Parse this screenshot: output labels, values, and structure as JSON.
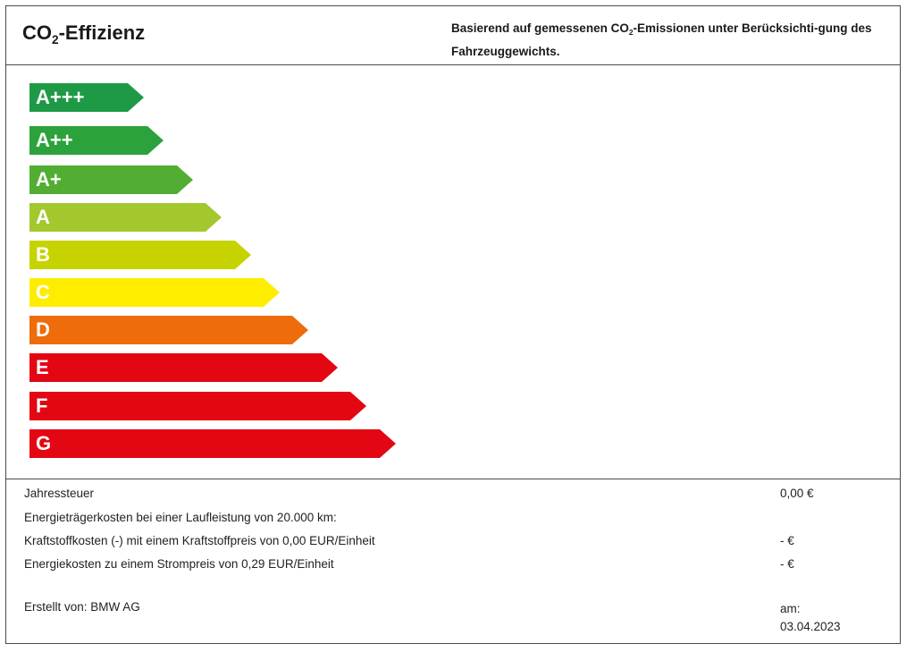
{
  "header": {
    "title_prefix": "CO",
    "title_sub": "2",
    "title_suffix": "-Effizienz",
    "desc_part1": "Basierend auf gemessenen CO",
    "desc_sub": "2",
    "desc_part2": "-Emissionen unter Berücksichti-gung des Fahrzeuggewichts."
  },
  "efficiency_classes": [
    {
      "label": "A+++",
      "color": "#1e9a46"
    },
    {
      "label": "A++",
      "color": "#2ca23c"
    },
    {
      "label": "A+",
      "color": "#52ae32"
    },
    {
      "label": "A",
      "color": "#a3c82d"
    },
    {
      "label": "B",
      "color": "#c7d300"
    },
    {
      "label": "C",
      "color": "#ffed00"
    },
    {
      "label": "D",
      "color": "#ee6c0b"
    },
    {
      "label": "E",
      "color": "#e30613"
    },
    {
      "label": "F",
      "color": "#e30613"
    },
    {
      "label": "G",
      "color": "#e30613"
    }
  ],
  "costs": {
    "annual_tax_label": "Jahressteuer",
    "annual_tax_value": "0,00 €",
    "energy_costs_label": "Energieträgerkosten bei einer Laufleistung von 20.000 km:",
    "fuel_costs_label": "Kraftstoffkosten (-) mit einem Kraftstoffpreis von 0,00 EUR/Einheit",
    "fuel_costs_value": "- €",
    "electricity_costs_label": "Energiekosten zu einem Strompreis von 0,29 EUR/Einheit",
    "electricity_costs_value": "- €"
  },
  "footer": {
    "created_by": "Erstellt von: BMW AG",
    "date_label": "am:",
    "date_value": "03.04.2023"
  }
}
